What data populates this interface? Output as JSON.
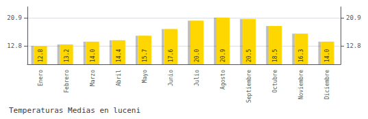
{
  "chart_data": {
    "type": "bar",
    "title": "Temperaturas Medias en luceni",
    "categories": [
      "Enero",
      "Febrero",
      "Marzo",
      "Abril",
      "Mayo",
      "Junio",
      "Julio",
      "Agosto",
      "Septiembre",
      "Octubre",
      "Noviembre",
      "Diciembre"
    ],
    "values": [
      12.8,
      13.2,
      14.0,
      14.4,
      15.7,
      17.6,
      20.0,
      20.9,
      20.5,
      18.5,
      16.3,
      14.0
    ],
    "value_labels": [
      "12.8",
      "13.2",
      "14.0",
      "14.4",
      "15.7",
      "17.6",
      "20.0",
      "20.9",
      "20.5",
      "18.5",
      "16.3",
      "14.0"
    ],
    "data_labels": true,
    "color": "#FFD700",
    "ylim": [
      7.5,
      24.0
    ],
    "yticks": [
      12.8,
      20.9
    ],
    "y2lim": [
      7.5,
      24.0
    ],
    "y2ticks": [
      12.8,
      20.9
    ],
    "grid": true
  }
}
